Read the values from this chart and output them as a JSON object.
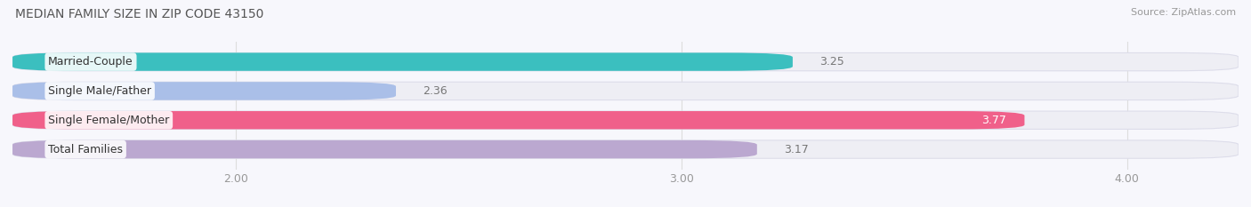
{
  "title": "MEDIAN FAMILY SIZE IN ZIP CODE 43150",
  "source": "Source: ZipAtlas.com",
  "categories": [
    "Married-Couple",
    "Single Male/Father",
    "Single Female/Mother",
    "Total Families"
  ],
  "values": [
    3.25,
    2.36,
    3.77,
    3.17
  ],
  "bar_colors": [
    "#3BBFBF",
    "#AABFE8",
    "#F0608A",
    "#BBA8D0"
  ],
  "bar_bg_color": "#EEEEF4",
  "bar_border_color": "#DDDDEA",
  "xlim_min": 1.5,
  "xlim_max": 4.25,
  "xticks": [
    2.0,
    3.0,
    4.0
  ],
  "xtick_labels": [
    "2.00",
    "3.00",
    "4.00"
  ],
  "figsize": [
    14.06,
    2.33
  ],
  "dpi": 100,
  "background_color": "#F7F7FC",
  "bar_height": 0.62,
  "bar_gap": 0.38,
  "title_fontsize": 10,
  "source_fontsize": 8,
  "tick_fontsize": 9,
  "value_fontsize": 9,
  "cat_fontsize": 9,
  "value_inside_threshold": 3.4,
  "grid_color": "#DDDDDD",
  "pill_color": "#FFFFFF",
  "pill_alpha": 0.88
}
